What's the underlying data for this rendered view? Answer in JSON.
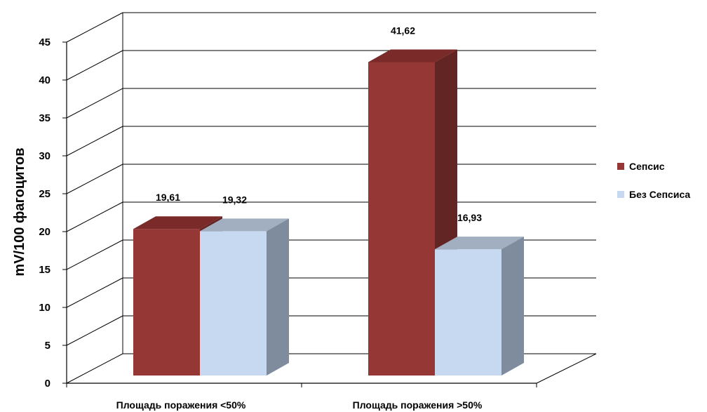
{
  "chart_data": {
    "type": "bar",
    "categories": [
      "Площадь поражения <50%",
      "Площадь поражения >50%"
    ],
    "series": [
      {
        "name": "Сепсис",
        "values": [
          19.61,
          41.62
        ],
        "labels": [
          "19,61",
          "41,62"
        ],
        "color": "#953735",
        "side_color": "#632523",
        "top_color": "#7a2a28"
      },
      {
        "name": "Без Сепсиса",
        "values": [
          19.32,
          16.93
        ],
        "labels": [
          "19,32",
          "16,93"
        ],
        "color": "#c6d9f1",
        "side_color": "#7f8c9d",
        "top_color": "#a1afc0"
      }
    ],
    "ylabel": "mV/100 фагоцитов",
    "xlabel": "",
    "ylim": [
      0,
      45
    ],
    "yticks": [
      "0",
      "5",
      "10",
      "15",
      "20",
      "25",
      "30",
      "35",
      "40",
      "45"
    ],
    "grid": true,
    "legend_position": "right"
  }
}
